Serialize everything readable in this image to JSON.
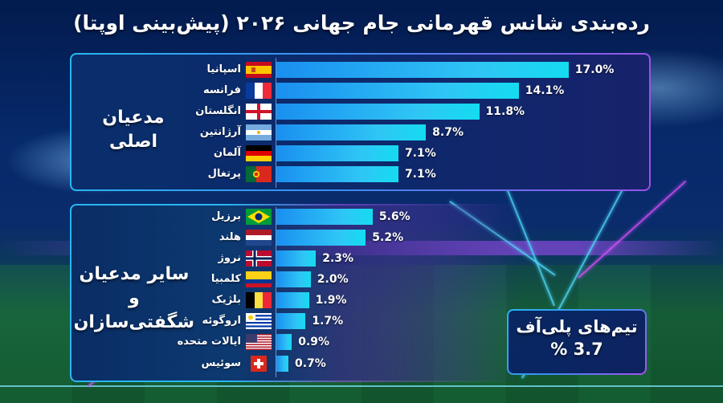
{
  "title": "رده‌بندی شانس قهرمانی جام جهانی ۲۰۲۶ (پیش‌بینی اوپتا)",
  "groups": {
    "main": {
      "label": "مدعیان اصلی"
    },
    "other": {
      "label_line1": "سایر مدعیان",
      "label_line2": "و شگفتی‌سازان"
    }
  },
  "playoff": {
    "label": "تیم‌های پلی‌آف",
    "value": "% 3.7"
  },
  "colors": {
    "bar_start": "#1a8ff0",
    "bar_end": "#14dcf0",
    "border_cyan": "#2ab6f0",
    "border_purple": "#9a52e8"
  },
  "rows": [
    {
      "country": "اسپانیا",
      "flag": "spain-flag",
      "value": 17.0,
      "label": "17.0%"
    },
    {
      "country": "فرانسه",
      "flag": "france-flag",
      "value": 14.1,
      "label": "14.1%"
    },
    {
      "country": "انگلستان",
      "flag": "england-flag",
      "value": 11.8,
      "label": "11.8%"
    },
    {
      "country": "آرژانتین",
      "flag": "argentina-flag",
      "value": 8.7,
      "label": "8.7%"
    },
    {
      "country": "آلمان",
      "flag": "germany-flag",
      "value": 7.1,
      "label": "7.1%"
    },
    {
      "country": "پرتغال",
      "flag": "portugal-flag",
      "value": 7.1,
      "label": "7.1%"
    },
    {
      "country": "برزیل",
      "flag": "brazil-flag",
      "value": 5.6,
      "label": "5.6%"
    },
    {
      "country": "هلند",
      "flag": "netherlands-flag",
      "value": 5.2,
      "label": "5.2%"
    },
    {
      "country": "نروژ",
      "flag": "norway-flag",
      "value": 2.3,
      "label": "2.3%"
    },
    {
      "country": "کلمبیا",
      "flag": "colombia-flag",
      "value": 2.0,
      "label": "2.0%"
    },
    {
      "country": "بلژیک",
      "flag": "belgium-flag",
      "value": 1.9,
      "label": "1.9%"
    },
    {
      "country": "اروگوئه",
      "flag": "uruguay-flag",
      "value": 1.7,
      "label": "1.7%"
    },
    {
      "country": "ایالات متحده",
      "flag": "usa-flag",
      "value": 0.9,
      "label": "0.9%"
    },
    {
      "country": "سوئیس",
      "flag": "switzerland-flag",
      "value": 0.7,
      "label": "0.7%"
    }
  ],
  "chart_data": {
    "type": "bar",
    "orientation": "horizontal",
    "title": "رده‌بندی شانس قهرمانی جام جهانی ۲۰۲۶ (پیش‌بینی اوپتا)",
    "xlabel": "",
    "ylabel": "",
    "unit": "%",
    "categories": [
      "اسپانیا",
      "فرانسه",
      "انگلستان",
      "آرژانتین",
      "آلمان",
      "پرتغال",
      "برزیل",
      "هلند",
      "نروژ",
      "کلمبیا",
      "بلژیک",
      "اروگوئه",
      "ایالات متحده",
      "سوئیس"
    ],
    "values": [
      17.0,
      14.1,
      11.8,
      8.7,
      7.1,
      7.1,
      5.6,
      5.2,
      2.3,
      2.0,
      1.9,
      1.7,
      0.9,
      0.7
    ],
    "groups": [
      {
        "name": "مدعیان اصلی",
        "members": [
          "اسپانیا",
          "فرانسه",
          "انگلستان",
          "آرژانتین",
          "آلمان",
          "پرتغال"
        ]
      },
      {
        "name": "سایر مدعیان و شگفتی‌سازان",
        "members": [
          "برزیل",
          "هلند",
          "نروژ",
          "کلمبیا",
          "بلژیک",
          "اروگوئه",
          "ایالات متحده",
          "سوئیس"
        ]
      }
    ],
    "annotations": [
      {
        "text": "تیم‌های پلی‌آف",
        "value": 3.7,
        "display": "% 3.7"
      }
    ],
    "xlim": [
      0,
      17.0
    ],
    "grid": false,
    "legend": "none"
  }
}
